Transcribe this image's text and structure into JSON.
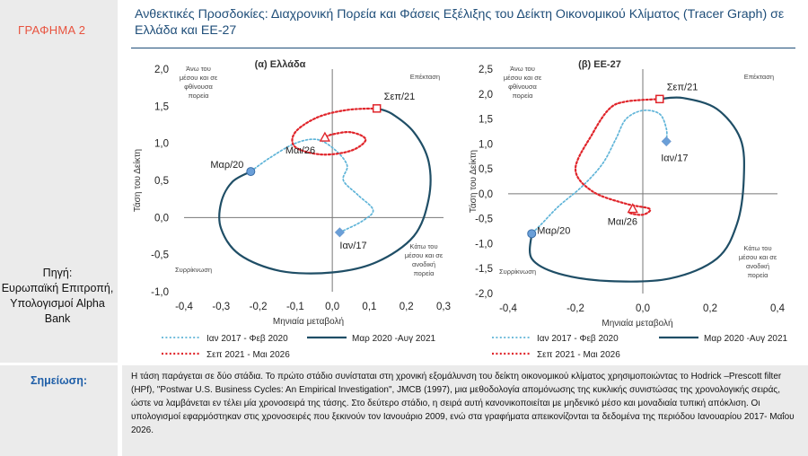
{
  "header": {
    "graph_label": "ΓΡΑΦΗΜΑ 2",
    "title": "Ανθεκτικές Προσδοκίες: Διαχρονική Πορεία και Φάσεις Εξέλιξης του Δείκτη Οικονομικού Κλίματος (Tracer Graph) σε Ελλάδα και ΕΕ-27"
  },
  "source": {
    "label": "Πηγή:",
    "text": "Ευρωπαϊκή Επιτροπή, Υπολογισμοί Alpha Bank"
  },
  "note": {
    "label": "Σημείωση:",
    "text": "Η τάση παράγεται σε δύο στάδια. Το πρώτο στάδιο συνίσταται στη χρονική εξομάλυνση του δείκτη οικονομικού κλίματος χρησιμοποιώντας το Hodrick –Prescott filter (HPf), \"Postwar U.S. Business Cycles: An Empirical Investigation\", JMCB (1997), μια μεθοδολογία απομόνωσης της κυκλικής συνιστώσας της χρονολογικής σειράς, ώστε να λαμβάνεται εν τέλει μία χρονοσειρά της τάσης. Στο δεύτερο στάδιο, η σειρά αυτή κανονικοποιείται με μηδενικό μέσο και μοναδιαία τυπική απόκλιση. Οι υπολογισμοί εφαρμόστηκαν στις χρονοσειρές που ξεκινούν τον Ιανουάριο 2009, ενώ στα γραφήματα απεικονίζονται τα δεδομένα της περιόδου Ιανουαρίου 2017- Μαΐου 2026."
  },
  "colors": {
    "series1": "#5fb4d8",
    "series2": "#1f4e66",
    "series3": "#e0252b",
    "marker_blue": "#6a9fd8",
    "title": "#1f4e79",
    "accent": "#e8533f"
  },
  "chart_data": [
    {
      "type": "line",
      "title": "(α) Ελλάδα",
      "xlabel": "Μηνιαία μεταβολή",
      "ylabel": "Τάση του Δείκτη",
      "xlim": [
        -0.4,
        0.3
      ],
      "ylim": [
        -1.0,
        2.0
      ],
      "xticks": [
        "-0,4",
        "-0,3",
        "-0,2",
        "-0,1",
        "0,0",
        "0,1",
        "0,2",
        "0,3"
      ],
      "xtick_values": [
        -0.4,
        -0.3,
        -0.2,
        -0.1,
        0.0,
        0.1,
        0.2,
        0.3
      ],
      "yticks": [
        "2,0",
        "1,5",
        "1,0",
        "0,5",
        "0,0",
        "-0,5",
        "-1,0"
      ],
      "ytick_values": [
        2.0,
        1.5,
        1.0,
        0.5,
        0.0,
        -0.5,
        -1.0
      ],
      "quadrants": {
        "top_left": "Άνω του μέσου και σε φθίνουσα πορεία",
        "top_right": "Επέκταση",
        "bottom_left": "Συρρίκνωση",
        "bottom_right": "Κάτω του μέσου και σε ανοδική πορεία"
      },
      "series": [
        {
          "name": "Ιαν 2017 - Φεβ 2020",
          "style": "dotted",
          "points": [
            [
              0.02,
              -0.2
            ],
            [
              0.08,
              -0.05
            ],
            [
              0.11,
              0.1
            ],
            [
              0.07,
              0.3
            ],
            [
              0.03,
              0.5
            ],
            [
              0.04,
              0.7
            ],
            [
              0.01,
              0.9
            ],
            [
              -0.04,
              1.05
            ],
            [
              -0.1,
              1.0
            ],
            [
              -0.17,
              0.8
            ],
            [
              -0.22,
              0.62
            ]
          ]
        },
        {
          "name": "Μαρ 2020 -Αυγ 2021",
          "style": "solid",
          "points": [
            [
              -0.22,
              0.62
            ],
            [
              -0.27,
              0.48
            ],
            [
              -0.3,
              0.2
            ],
            [
              -0.3,
              -0.15
            ],
            [
              -0.25,
              -0.5
            ],
            [
              -0.14,
              -0.72
            ],
            [
              0.0,
              -0.74
            ],
            [
              0.12,
              -0.6
            ],
            [
              0.22,
              -0.25
            ],
            [
              0.26,
              0.25
            ],
            [
              0.26,
              0.75
            ],
            [
              0.22,
              1.15
            ],
            [
              0.16,
              1.4
            ],
            [
              0.12,
              1.47
            ]
          ]
        },
        {
          "name": "Σεπ 2021 - Μαι 2026",
          "style": "dotted",
          "points": [
            [
              0.12,
              1.47
            ],
            [
              0.04,
              1.45
            ],
            [
              -0.04,
              1.35
            ],
            [
              -0.1,
              1.15
            ],
            [
              -0.1,
              0.95
            ],
            [
              -0.03,
              0.85
            ],
            [
              0.05,
              0.9
            ],
            [
              0.09,
              1.05
            ],
            [
              0.05,
              1.15
            ],
            [
              0.0,
              1.12
            ],
            [
              -0.02,
              1.08
            ]
          ]
        }
      ],
      "labels": [
        {
          "text": "Σεπ/21",
          "x": 0.12,
          "y": 1.47,
          "marker": "square"
        },
        {
          "text": "Μαι/26",
          "x": -0.02,
          "y": 1.08,
          "marker": "triangle"
        },
        {
          "text": "Μαρ/20",
          "x": -0.22,
          "y": 0.62,
          "marker": "circle"
        },
        {
          "text": "Ιαν/17",
          "x": 0.02,
          "y": -0.2,
          "marker": "diamond"
        }
      ]
    },
    {
      "type": "line",
      "title": "(β) ΕΕ-27",
      "xlabel": "Μηνιαία μεταβολή",
      "ylabel": "Τάση του Δείκτη",
      "xlim": [
        -0.4,
        0.4
      ],
      "ylim": [
        -2.0,
        2.5
      ],
      "xticks": [
        "-0,4",
        "-0,2",
        "0,0",
        "0,2",
        "0,4"
      ],
      "xtick_values": [
        -0.4,
        -0.2,
        0.0,
        0.2,
        0.4
      ],
      "yticks": [
        "2,5",
        "2,0",
        "1,5",
        "1,0",
        "0,5",
        "0,0",
        "-0,5",
        "-1,0",
        "-1,5",
        "-2,0"
      ],
      "ytick_values": [
        2.5,
        2.0,
        1.5,
        1.0,
        0.5,
        0.0,
        -0.5,
        -1.0,
        -1.5,
        -2.0
      ],
      "quadrants": {
        "top_left": "Άνω του μέσου και σε φθίνουσα πορεία",
        "top_right": "Επέκταση",
        "bottom_left": "Συρρίκνωση",
        "bottom_right": "Κάτω του μέσου και σε ανοδική πορεία"
      },
      "series": [
        {
          "name": "Ιαν 2017 - Φεβ 2020",
          "style": "dotted",
          "points": [
            [
              0.07,
              1.05
            ],
            [
              0.07,
              1.3
            ],
            [
              0.05,
              1.6
            ],
            [
              0.0,
              1.67
            ],
            [
              -0.05,
              1.5
            ],
            [
              -0.08,
              1.1
            ],
            [
              -0.12,
              0.6
            ],
            [
              -0.18,
              0.15
            ],
            [
              -0.25,
              -0.25
            ],
            [
              -0.3,
              -0.6
            ],
            [
              -0.33,
              -0.8
            ]
          ]
        },
        {
          "name": "Μαρ 2020 -Αυγ 2021",
          "style": "solid",
          "points": [
            [
              -0.33,
              -0.8
            ],
            [
              -0.33,
              -1.3
            ],
            [
              -0.25,
              -1.6
            ],
            [
              -0.1,
              -1.75
            ],
            [
              0.08,
              -1.7
            ],
            [
              0.22,
              -1.3
            ],
            [
              0.28,
              -0.6
            ],
            [
              0.3,
              0.3
            ],
            [
              0.29,
              1.1
            ],
            [
              0.22,
              1.7
            ],
            [
              0.12,
              1.92
            ],
            [
              0.05,
              1.9
            ]
          ]
        },
        {
          "name": "Σεπ 2021 - Μαι 2026",
          "style": "dotted",
          "points": [
            [
              0.05,
              1.9
            ],
            [
              -0.05,
              1.85
            ],
            [
              -0.1,
              1.7
            ],
            [
              -0.15,
              1.2
            ],
            [
              -0.2,
              0.5
            ],
            [
              -0.15,
              0.05
            ],
            [
              -0.05,
              -0.2
            ],
            [
              0.02,
              -0.3
            ],
            [
              0.0,
              -0.42
            ],
            [
              -0.04,
              -0.38
            ],
            [
              -0.03,
              -0.3
            ]
          ]
        }
      ],
      "labels": [
        {
          "text": "Σεπ/21",
          "x": 0.05,
          "y": 1.9,
          "marker": "square"
        },
        {
          "text": "Μαι/26",
          "x": -0.03,
          "y": -0.3,
          "marker": "triangle"
        },
        {
          "text": "Μαρ/20",
          "x": -0.33,
          "y": -0.8,
          "marker": "circle"
        },
        {
          "text": "Ιαν/17",
          "x": 0.07,
          "y": 1.05,
          "marker": "diamond"
        }
      ]
    }
  ]
}
